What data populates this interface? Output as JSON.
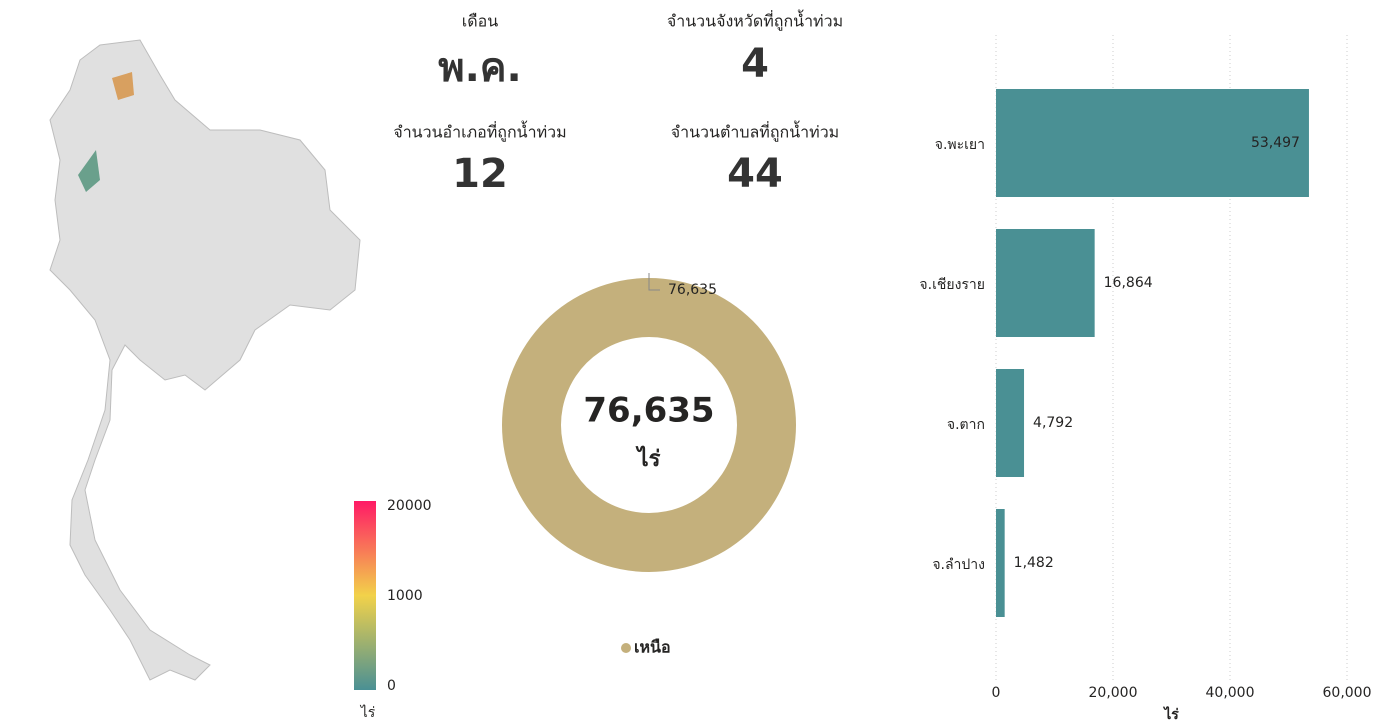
{
  "kpis": [
    {
      "label": "เดือน",
      "value": "พ.ค."
    },
    {
      "label": "จำนวนจังหวัดที่ถูกน้ำท่วม",
      "value": 4
    },
    {
      "label": "จำนวนอำเภอที่ถูกน้ำท่วม",
      "value": 12
    },
    {
      "label": "จำนวนตำบลที่ถูกน้ำท่วม",
      "value": 44
    }
  ],
  "map_legend": {
    "ticks": [
      "20000",
      "1000",
      "0"
    ],
    "unit": "ไร่"
  },
  "chart_data": [
    {
      "type": "pie",
      "center_text": "76,635",
      "center_unit": "ไร่",
      "categories": [
        "เหนือ"
      ],
      "values": [
        76635
      ],
      "value_labels": [
        "76,635"
      ],
      "colors": [
        "#c4b07c"
      ]
    },
    {
      "type": "barh",
      "categories": [
        "จ.พะเยา",
        "จ.เชียงราย",
        "จ.ตาก",
        "จ.ลำปาง"
      ],
      "values": [
        53497,
        16864,
        4792,
        1482
      ],
      "value_labels": [
        "53,497",
        "16,864",
        "4,792",
        "1,482"
      ],
      "color": "#4a9094",
      "x_label": "ไร่",
      "xlim": [
        0,
        60000
      ],
      "xticks": [
        0,
        {
          "value": 20000,
          "label": "20,000"
        },
        {
          "value": 40000,
          "label": "40,000"
        },
        {
          "value": 60000,
          "label": "60,000"
        }
      ],
      "grid": true
    }
  ]
}
